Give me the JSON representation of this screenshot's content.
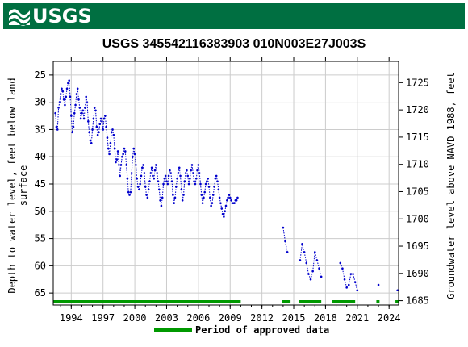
{
  "header": {
    "logo_text": "USGS",
    "brand_color": "#006f41"
  },
  "chart_data": {
    "type": "scatter",
    "title": "USGS 345542116383903 010N003E27J003S",
    "ylabel_left_line1": "Depth to water level, feet below land",
    "ylabel_left_line2": "surface",
    "ylabel_right": "Groundwater level above NAVD 1988, feet",
    "xlim": [
      1992.3,
      2024.9
    ],
    "ylim_left": [
      67.2,
      22.5
    ],
    "ylim_right": [
      1684.2,
      1728.9
    ],
    "x_ticks": [
      1994,
      1997,
      2000,
      2003,
      2006,
      2009,
      2012,
      2015,
      2018,
      2021,
      2024
    ],
    "y_ticks_left": [
      25,
      30,
      35,
      40,
      45,
      50,
      55,
      60,
      65
    ],
    "y_ticks_right": [
      1685,
      1690,
      1695,
      1700,
      1705,
      1710,
      1715,
      1720,
      1725
    ],
    "series_color": "#0000cc",
    "approved_color": "#009900",
    "series": [
      {
        "values": [
          [
            1992.5,
            32.0
          ],
          [
            1992.6,
            34.5
          ],
          [
            1992.7,
            35.0
          ],
          [
            1992.8,
            31.0
          ],
          [
            1992.9,
            30.0
          ],
          [
            1993.0,
            28.5
          ],
          [
            1993.1,
            27.5
          ],
          [
            1993.2,
            28.0
          ],
          [
            1993.3,
            29.5
          ],
          [
            1993.4,
            30.5
          ],
          [
            1993.5,
            29.0
          ],
          [
            1993.6,
            27.5
          ],
          [
            1993.7,
            26.5
          ],
          [
            1993.8,
            26.0
          ],
          [
            1993.9,
            29.0
          ],
          [
            1994.0,
            32.5
          ],
          [
            1994.1,
            35.5
          ],
          [
            1994.2,
            34.5
          ],
          [
            1994.3,
            32.0
          ],
          [
            1994.4,
            30.5
          ],
          [
            1994.5,
            28.5
          ],
          [
            1994.6,
            27.5
          ],
          [
            1994.7,
            29.5
          ],
          [
            1994.8,
            31.0
          ],
          [
            1994.9,
            33.0
          ],
          [
            1995.0,
            32.0
          ],
          [
            1995.1,
            31.5
          ],
          [
            1995.2,
            33.0
          ],
          [
            1995.3,
            31.0
          ],
          [
            1995.4,
            29.0
          ],
          [
            1995.5,
            30.0
          ],
          [
            1995.6,
            33.5
          ],
          [
            1995.7,
            35.5
          ],
          [
            1995.8,
            37.0
          ],
          [
            1995.9,
            37.5
          ],
          [
            1996.0,
            35.0
          ],
          [
            1996.1,
            33.0
          ],
          [
            1996.2,
            31.0
          ],
          [
            1996.3,
            31.5
          ],
          [
            1996.4,
            34.5
          ],
          [
            1996.5,
            36.0
          ],
          [
            1996.6,
            35.5
          ],
          [
            1996.7,
            34.0
          ],
          [
            1996.8,
            33.0
          ],
          [
            1996.9,
            33.5
          ],
          [
            1997.0,
            35.0
          ],
          [
            1997.1,
            33.0
          ],
          [
            1997.2,
            32.5
          ],
          [
            1997.3,
            34.5
          ],
          [
            1997.4,
            36.5
          ],
          [
            1997.5,
            38.5
          ],
          [
            1997.6,
            39.5
          ],
          [
            1997.7,
            37.5
          ],
          [
            1997.8,
            35.5
          ],
          [
            1997.9,
            35.0
          ],
          [
            1998.0,
            36.0
          ],
          [
            1998.1,
            38.5
          ],
          [
            1998.2,
            41.0
          ],
          [
            1998.3,
            40.5
          ],
          [
            1998.4,
            39.0
          ],
          [
            1998.5,
            41.5
          ],
          [
            1998.6,
            43.5
          ],
          [
            1998.7,
            41.5
          ],
          [
            1998.8,
            40.0
          ],
          [
            1998.9,
            39.5
          ],
          [
            1999.0,
            38.5
          ],
          [
            1999.1,
            39.0
          ],
          [
            1999.2,
            41.5
          ],
          [
            1999.3,
            44.0
          ],
          [
            1999.4,
            46.5
          ],
          [
            1999.5,
            47.0
          ],
          [
            1999.6,
            46.5
          ],
          [
            1999.7,
            43.0
          ],
          [
            1999.8,
            40.0
          ],
          [
            1999.9,
            38.5
          ],
          [
            2000.0,
            39.5
          ],
          [
            2000.1,
            41.5
          ],
          [
            2000.2,
            44.0
          ],
          [
            2000.3,
            45.5
          ],
          [
            2000.4,
            46.0
          ],
          [
            2000.5,
            45.0
          ],
          [
            2000.6,
            43.5
          ],
          [
            2000.7,
            42.0
          ],
          [
            2000.8,
            41.5
          ],
          [
            2000.9,
            43.0
          ],
          [
            2001.0,
            45.5
          ],
          [
            2001.1,
            47.0
          ],
          [
            2001.2,
            47.5
          ],
          [
            2001.3,
            46.0
          ],
          [
            2001.4,
            44.5
          ],
          [
            2001.5,
            43.0
          ],
          [
            2001.6,
            42.0
          ],
          [
            2001.7,
            43.5
          ],
          [
            2001.8,
            44.0
          ],
          [
            2001.9,
            42.5
          ],
          [
            2002.0,
            41.5
          ],
          [
            2002.1,
            43.0
          ],
          [
            2002.2,
            44.5
          ],
          [
            2002.3,
            46.0
          ],
          [
            2002.4,
            48.0
          ],
          [
            2002.5,
            49.0
          ],
          [
            2002.6,
            47.5
          ],
          [
            2002.7,
            45.0
          ],
          [
            2002.8,
            44.0
          ],
          [
            2002.9,
            43.5
          ],
          [
            2003.0,
            44.5
          ],
          [
            2003.1,
            45.0
          ],
          [
            2003.2,
            43.5
          ],
          [
            2003.3,
            42.5
          ],
          [
            2003.4,
            43.0
          ],
          [
            2003.5,
            44.5
          ],
          [
            2003.6,
            47.0
          ],
          [
            2003.7,
            48.5
          ],
          [
            2003.8,
            47.5
          ],
          [
            2003.9,
            45.5
          ],
          [
            2004.0,
            44.0
          ],
          [
            2004.1,
            43.0
          ],
          [
            2004.2,
            42.0
          ],
          [
            2004.3,
            43.5
          ],
          [
            2004.4,
            46.0
          ],
          [
            2004.5,
            48.0
          ],
          [
            2004.6,
            47.0
          ],
          [
            2004.7,
            44.5
          ],
          [
            2004.8,
            43.0
          ],
          [
            2004.9,
            42.5
          ],
          [
            2005.0,
            43.5
          ],
          [
            2005.1,
            45.0
          ],
          [
            2005.2,
            44.0
          ],
          [
            2005.3,
            42.5
          ],
          [
            2005.4,
            41.5
          ],
          [
            2005.5,
            43.0
          ],
          [
            2005.6,
            44.5
          ],
          [
            2005.7,
            45.0
          ],
          [
            2005.8,
            44.0
          ],
          [
            2005.9,
            42.5
          ],
          [
            2006.0,
            41.5
          ],
          [
            2006.1,
            43.0
          ],
          [
            2006.2,
            45.0
          ],
          [
            2006.3,
            47.0
          ],
          [
            2006.4,
            48.5
          ],
          [
            2006.5,
            47.5
          ],
          [
            2006.6,
            46.5
          ],
          [
            2006.7,
            45.0
          ],
          [
            2006.8,
            44.5
          ],
          [
            2006.9,
            44.0
          ],
          [
            2007.0,
            45.5
          ],
          [
            2007.1,
            47.5
          ],
          [
            2007.2,
            49.0
          ],
          [
            2007.3,
            48.5
          ],
          [
            2007.4,
            47.0
          ],
          [
            2007.5,
            45.5
          ],
          [
            2007.6,
            44.0
          ],
          [
            2007.7,
            43.5
          ],
          [
            2007.8,
            44.5
          ],
          [
            2007.9,
            46.0
          ],
          [
            2008.0,
            47.5
          ],
          [
            2008.1,
            48.5
          ],
          [
            2008.2,
            49.5
          ],
          [
            2008.3,
            50.5
          ],
          [
            2008.4,
            51.0
          ],
          [
            2008.5,
            50.0
          ],
          [
            2008.6,
            49.0
          ],
          [
            2008.7,
            48.0
          ],
          [
            2008.8,
            47.5
          ],
          [
            2008.9,
            47.0
          ],
          [
            2009.0,
            47.5
          ],
          [
            2009.1,
            48.0
          ],
          [
            2009.2,
            48.5
          ],
          [
            2009.3,
            48.5
          ],
          [
            2009.4,
            48.5
          ],
          [
            2009.5,
            48.0
          ],
          [
            2009.6,
            48.0
          ],
          [
            2009.7,
            47.5
          ],
          [
            2014.0,
            53.0
          ],
          [
            2014.2,
            55.5
          ],
          [
            2014.4,
            57.5
          ],
          [
            2015.6,
            59.0
          ],
          [
            2015.8,
            56.0
          ],
          [
            2016.0,
            57.5
          ],
          [
            2016.2,
            59.5
          ],
          [
            2016.4,
            61.5
          ],
          [
            2016.6,
            62.5
          ],
          [
            2016.8,
            61.0
          ],
          [
            2017.0,
            57.5
          ],
          [
            2017.2,
            59.0
          ],
          [
            2017.4,
            60.5
          ],
          [
            2017.6,
            62.0
          ],
          [
            2019.4,
            59.5
          ],
          [
            2019.6,
            60.5
          ],
          [
            2019.8,
            62.5
          ],
          [
            2020.0,
            64.0
          ],
          [
            2020.2,
            63.5
          ],
          [
            2020.4,
            61.5
          ],
          [
            2020.6,
            61.5
          ],
          [
            2020.8,
            63.0
          ],
          [
            2021.0,
            64.5
          ],
          [
            2023.0,
            63.5
          ],
          [
            2024.8,
            64.5
          ]
        ]
      }
    ],
    "approved_periods": [
      [
        1992.3,
        2010.0
      ],
      [
        2013.9,
        2014.7
      ],
      [
        2015.5,
        2017.6
      ],
      [
        2018.6,
        2020.8
      ],
      [
        2022.8,
        2023.1
      ],
      [
        2024.6,
        2024.9
      ]
    ],
    "legend_label": "Period of approved data",
    "grid": true
  }
}
